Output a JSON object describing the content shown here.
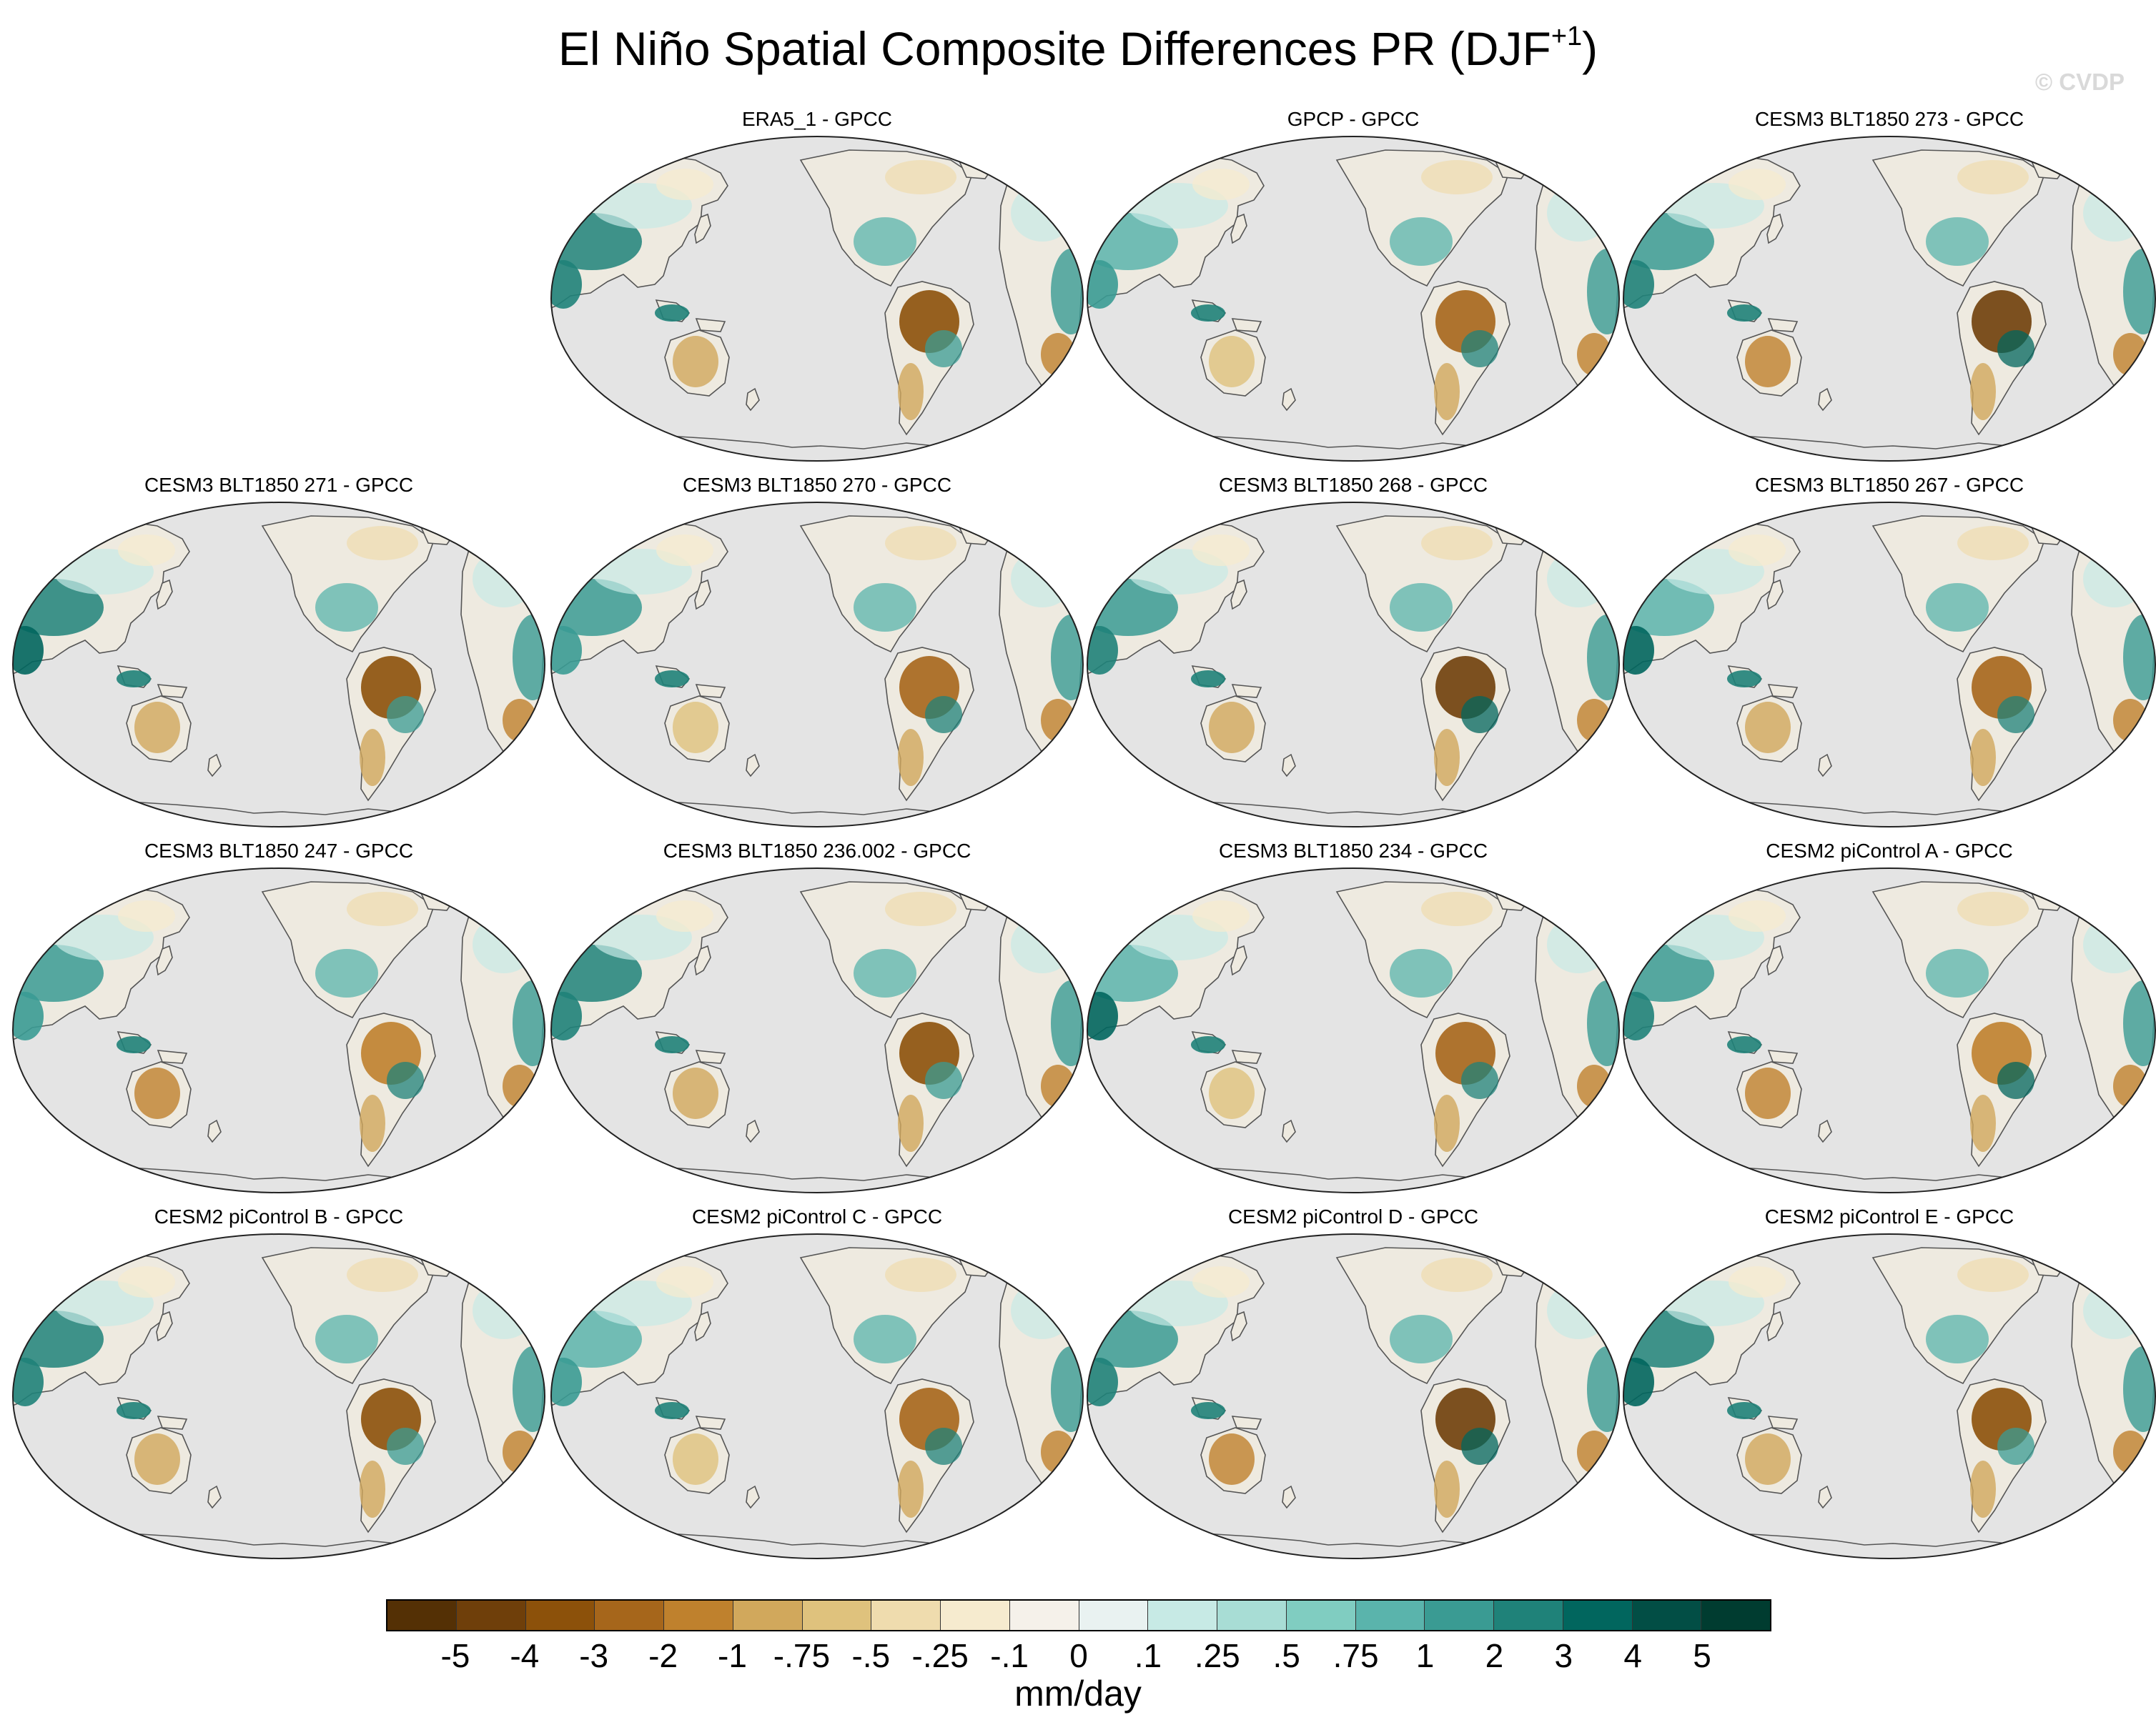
{
  "title": "El Niño Spatial Composite Differences PR (DJF",
  "title_sup": "+1",
  "title_close": ")",
  "watermark": "© CVDP",
  "panels": [
    {
      "label": "ERA5_1 - GPCC",
      "row": 0,
      "col": 1
    },
    {
      "label": "GPCP - GPCC",
      "row": 0,
      "col": 2
    },
    {
      "label": "CESM3 BLT1850 273 - GPCC",
      "row": 0,
      "col": 3
    },
    {
      "label": "CESM3 BLT1850 271 - GPCC",
      "row": 1,
      "col": 0
    },
    {
      "label": "CESM3 BLT1850 270 - GPCC",
      "row": 1,
      "col": 1
    },
    {
      "label": "CESM3 BLT1850 268 - GPCC",
      "row": 1,
      "col": 2
    },
    {
      "label": "CESM3 BLT1850 267 - GPCC",
      "row": 1,
      "col": 3
    },
    {
      "label": "CESM3 BLT1850 247 - GPCC",
      "row": 2,
      "col": 0
    },
    {
      "label": "CESM3 BLT1850 236.002 - GPCC",
      "row": 2,
      "col": 1
    },
    {
      "label": "CESM3 BLT1850 234 - GPCC",
      "row": 2,
      "col": 2
    },
    {
      "label": "CESM2 piControl A - GPCC",
      "row": 2,
      "col": 3
    },
    {
      "label": "CESM2 piControl B - GPCC",
      "row": 3,
      "col": 0
    },
    {
      "label": "CESM2 piControl C - GPCC",
      "row": 3,
      "col": 1
    },
    {
      "label": "CESM2 piControl D - GPCC",
      "row": 3,
      "col": 2
    },
    {
      "label": "CESM2 piControl E - GPCC",
      "row": 3,
      "col": 3
    }
  ],
  "colorbar": {
    "units": "mm/day",
    "colors": [
      "#543005",
      "#6f3f0a",
      "#8c510a",
      "#a6661b",
      "#bf812d",
      "#d1a85c",
      "#dfc27d",
      "#efdcae",
      "#f6ebcf",
      "#f5f1ea",
      "#e9f2f1",
      "#c7eae5",
      "#a8ddd5",
      "#80cdc1",
      "#5ab4ac",
      "#3a9b93",
      "#1f8279",
      "#01665e",
      "#024e45",
      "#003c30"
    ],
    "ticks": [
      "-5",
      "-4",
      "-3",
      "-2",
      "-1",
      "-.75",
      "-.5",
      "-.25",
      "-.1",
      "0",
      ".1",
      ".25",
      ".5",
      ".75",
      "1",
      "2",
      "3",
      "4",
      "5"
    ]
  }
}
